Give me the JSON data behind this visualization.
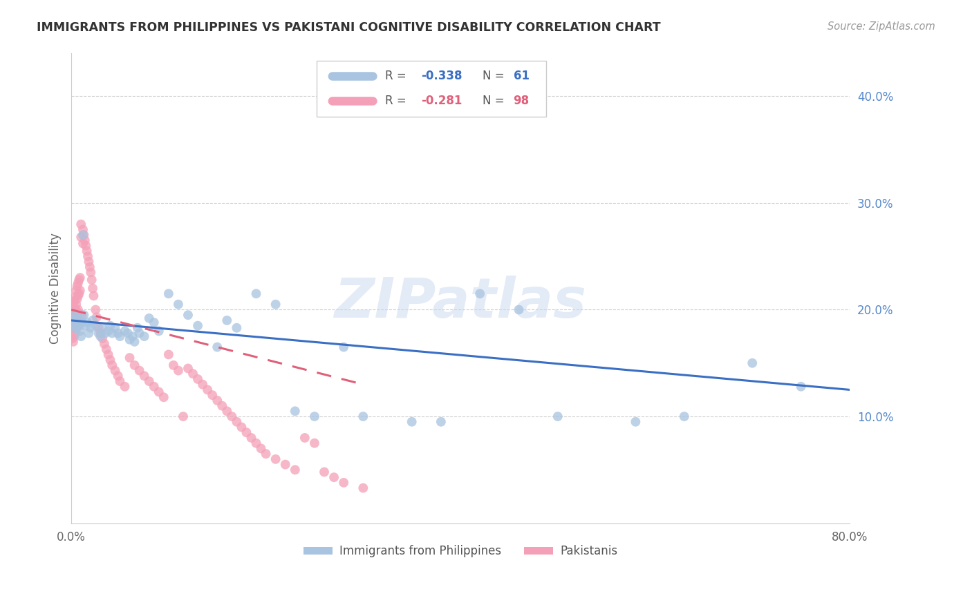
{
  "title": "IMMIGRANTS FROM PHILIPPINES VS PAKISTANI COGNITIVE DISABILITY CORRELATION CHART",
  "source": "Source: ZipAtlas.com",
  "ylabel": "Cognitive Disability",
  "right_yticks": [
    10.0,
    20.0,
    30.0,
    40.0
  ],
  "xmin": 0.0,
  "xmax": 0.8,
  "ymin": 0.0,
  "ymax": 0.44,
  "watermark": "ZIPatlas",
  "philippines_R": -0.338,
  "philippines_N": 61,
  "pakistani_R": -0.281,
  "pakistani_N": 98,
  "philippines_color": "#a8c4e0",
  "pakistani_color": "#f4a0b8",
  "philippines_line_color": "#3a6fc4",
  "pakistani_line_color": "#e0607a",
  "philippines_scatter_x": [
    0.002,
    0.003,
    0.004,
    0.005,
    0.006,
    0.007,
    0.008,
    0.009,
    0.01,
    0.011,
    0.012,
    0.013,
    0.015,
    0.016,
    0.018,
    0.02,
    0.022,
    0.025,
    0.028,
    0.03,
    0.032,
    0.035,
    0.038,
    0.04,
    0.042,
    0.045,
    0.048,
    0.05,
    0.055,
    0.058,
    0.06,
    0.063,
    0.065,
    0.068,
    0.07,
    0.075,
    0.08,
    0.085,
    0.09,
    0.1,
    0.11,
    0.12,
    0.13,
    0.15,
    0.16,
    0.17,
    0.19,
    0.21,
    0.23,
    0.25,
    0.28,
    0.3,
    0.35,
    0.38,
    0.42,
    0.46,
    0.5,
    0.58,
    0.63,
    0.7,
    0.75
  ],
  "philippines_scatter_y": [
    0.19,
    0.195,
    0.185,
    0.182,
    0.188,
    0.192,
    0.185,
    0.18,
    0.175,
    0.188,
    0.27,
    0.195,
    0.185,
    0.188,
    0.178,
    0.183,
    0.19,
    0.185,
    0.178,
    0.175,
    0.183,
    0.178,
    0.18,
    0.185,
    0.178,
    0.183,
    0.178,
    0.175,
    0.18,
    0.178,
    0.172,
    0.175,
    0.17,
    0.183,
    0.178,
    0.175,
    0.192,
    0.188,
    0.18,
    0.215,
    0.205,
    0.195,
    0.185,
    0.165,
    0.19,
    0.183,
    0.215,
    0.205,
    0.105,
    0.1,
    0.165,
    0.1,
    0.095,
    0.095,
    0.215,
    0.2,
    0.1,
    0.095,
    0.1,
    0.15,
    0.128
  ],
  "pakistani_scatter_x": [
    0.001,
    0.001,
    0.001,
    0.002,
    0.002,
    0.002,
    0.002,
    0.003,
    0.003,
    0.003,
    0.003,
    0.004,
    0.004,
    0.004,
    0.004,
    0.005,
    0.005,
    0.005,
    0.005,
    0.006,
    0.006,
    0.006,
    0.006,
    0.007,
    0.007,
    0.007,
    0.008,
    0.008,
    0.009,
    0.009,
    0.01,
    0.01,
    0.011,
    0.012,
    0.012,
    0.013,
    0.014,
    0.015,
    0.016,
    0.017,
    0.018,
    0.019,
    0.02,
    0.021,
    0.022,
    0.023,
    0.025,
    0.026,
    0.028,
    0.03,
    0.032,
    0.034,
    0.036,
    0.038,
    0.04,
    0.042,
    0.045,
    0.048,
    0.05,
    0.055,
    0.06,
    0.065,
    0.07,
    0.075,
    0.08,
    0.085,
    0.09,
    0.095,
    0.1,
    0.105,
    0.11,
    0.115,
    0.12,
    0.125,
    0.13,
    0.135,
    0.14,
    0.145,
    0.15,
    0.155,
    0.16,
    0.165,
    0.17,
    0.175,
    0.18,
    0.185,
    0.19,
    0.195,
    0.2,
    0.21,
    0.22,
    0.23,
    0.24,
    0.25,
    0.26,
    0.27,
    0.28,
    0.3
  ],
  "pakistani_scatter_y": [
    0.2,
    0.187,
    0.173,
    0.205,
    0.195,
    0.183,
    0.17,
    0.208,
    0.198,
    0.188,
    0.175,
    0.212,
    0.2,
    0.19,
    0.178,
    0.218,
    0.205,
    0.195,
    0.182,
    0.222,
    0.21,
    0.198,
    0.185,
    0.225,
    0.213,
    0.2,
    0.228,
    0.215,
    0.23,
    0.218,
    0.28,
    0.268,
    0.195,
    0.275,
    0.262,
    0.27,
    0.265,
    0.26,
    0.255,
    0.25,
    0.245,
    0.24,
    0.235,
    0.228,
    0.22,
    0.213,
    0.2,
    0.193,
    0.183,
    0.178,
    0.173,
    0.168,
    0.163,
    0.158,
    0.153,
    0.148,
    0.143,
    0.138,
    0.133,
    0.128,
    0.155,
    0.148,
    0.143,
    0.138,
    0.133,
    0.128,
    0.123,
    0.118,
    0.158,
    0.148,
    0.143,
    0.1,
    0.145,
    0.14,
    0.135,
    0.13,
    0.125,
    0.12,
    0.115,
    0.11,
    0.105,
    0.1,
    0.095,
    0.09,
    0.085,
    0.08,
    0.075,
    0.07,
    0.065,
    0.06,
    0.055,
    0.05,
    0.08,
    0.075,
    0.048,
    0.043,
    0.038,
    0.033
  ],
  "background_color": "#ffffff",
  "grid_color": "#d0d0d0",
  "title_color": "#333333",
  "right_axis_color": "#5588cc",
  "ylabel_color": "#666666"
}
